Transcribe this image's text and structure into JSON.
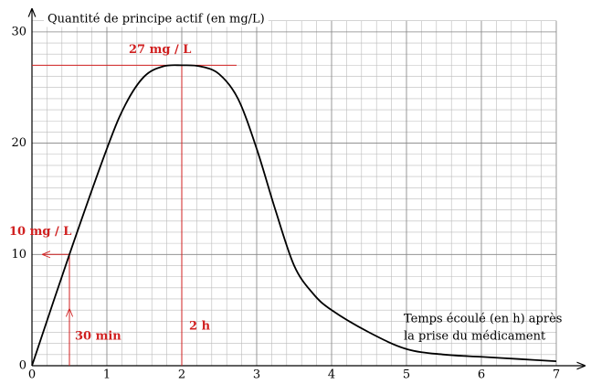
{
  "chart_data": {
    "type": "line",
    "y_label": "Quantité de principe actif (en mg/L)",
    "x_label": [
      "Temps écoulé (en h) après",
      "la prise du médicament"
    ],
    "x": [
      0,
      0.5,
      1,
      1.25,
      1.5,
      1.75,
      2,
      2.25,
      2.5,
      2.75,
      3,
      3.25,
      3.5,
      3.75,
      4,
      4.5,
      5,
      5.5,
      6,
      6.5,
      7
    ],
    "series": [
      {
        "color": "#000000",
        "values": [
          0,
          10,
          19.5,
          23.5,
          26,
          26.9,
          27,
          26.9,
          26.2,
          24,
          19.5,
          14,
          9,
          6.5,
          5,
          3,
          1.5,
          1,
          0.8,
          0.6,
          0.4
        ]
      }
    ],
    "xlim": [
      0,
      7
    ],
    "ylim": [
      0,
      31
    ],
    "xticks": [
      0,
      1,
      2,
      3,
      4,
      5,
      6,
      7
    ],
    "yticks": [
      0,
      10,
      20,
      30
    ],
    "grid": true,
    "markers": [
      {
        "x": 2,
        "y": 27,
        "x_label": "2 h",
        "y_label": "27 mg / L",
        "color": "#d02020"
      },
      {
        "x": 0.5,
        "y": 10,
        "x_label": "30 min",
        "y_label": "10 mg / L",
        "color": "#d02020"
      }
    ]
  }
}
